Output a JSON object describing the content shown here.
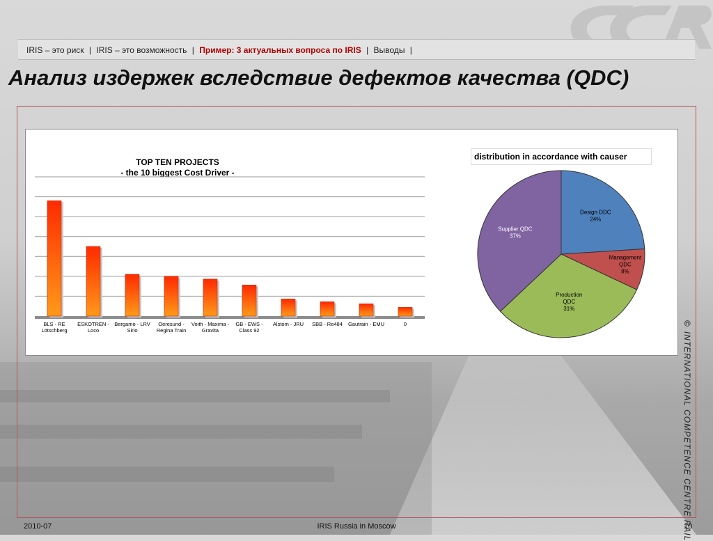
{
  "header": {
    "breadcrumb": [
      {
        "label": "IRIS – это риск",
        "active": false
      },
      {
        "label": "IRIS – это возможность",
        "active": false
      },
      {
        "label": "Пример: 3 актуальных вопроса по IRIS",
        "active": true
      },
      {
        "label": "Выводы",
        "active": false
      }
    ],
    "separator": "|",
    "title": "Анализ издержек вследствие дефектов качества (QDC)"
  },
  "colors": {
    "accent": "#b00000",
    "frame_border": "#b55454",
    "bar_top": "#ff2a00",
    "bar_bottom": "#ff9a1a"
  },
  "chart_data": [
    {
      "type": "bar",
      "title": "TOP TEN  PROJECTS",
      "subtitle": "-  the 10 biggest Cost Driver -",
      "categories": [
        [
          "BLS - RE",
          "Lötschberg"
        ],
        [
          "ESKOTREN -",
          "Loco"
        ],
        [
          "Bergamo - LRV",
          "Sirio"
        ],
        [
          "Oeresund -",
          "Regina Train"
        ],
        [
          "Voith - Maxima -",
          "Gravita"
        ],
        [
          "GB - EWS -",
          "Class 92"
        ],
        [
          "Alstom - JRU"
        ],
        [
          "SBB - Re484"
        ],
        [
          "Gautrain - EMU"
        ],
        [
          "0"
        ]
      ],
      "values": [
        29,
        17.5,
        10.5,
        10,
        9.3,
        7.8,
        4.3,
        3.6,
        3.1,
        2.2
      ],
      "ylim": [
        0,
        35
      ],
      "grid": true,
      "xlabel": "",
      "ylabel": ""
    },
    {
      "type": "pie",
      "title": "distribution in accordance with causer",
      "slices": [
        {
          "label": [
            "Design DDC"
          ],
          "pct_label": "24%",
          "value": 24,
          "color": "#4f81bd"
        },
        {
          "label": [
            "Management",
            "QDC"
          ],
          "pct_label": "8%",
          "value": 8,
          "color": "#c0504d"
        },
        {
          "label": [
            "Production",
            "QDC"
          ],
          "pct_label": "31%",
          "value": 31,
          "color": "#9bbb59"
        },
        {
          "label": [
            "Supplier  QDC"
          ],
          "pct_label": "37%",
          "value": 37,
          "color": "#8064a2"
        }
      ]
    }
  ],
  "side_text": {
    "copyright": "©",
    "text": "INTERNATIONAL  COMPETENCE  CENTRE  RAIL"
  },
  "footer": {
    "date": "2010-07",
    "center": "IRIS Russia in Moscow",
    "page": "10"
  }
}
